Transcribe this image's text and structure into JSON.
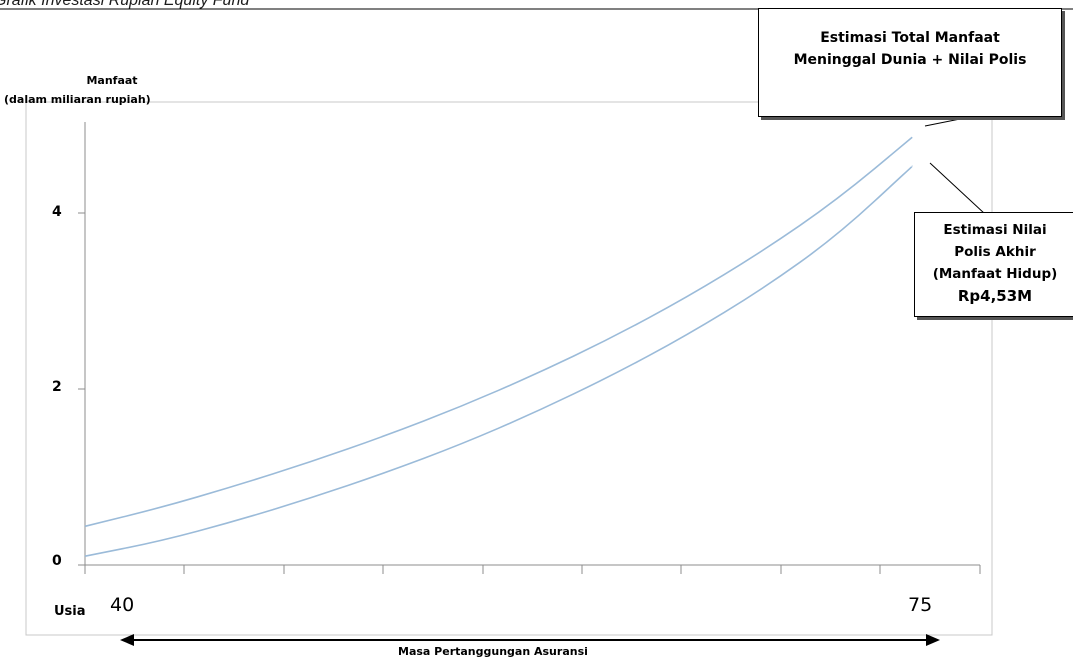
{
  "header": {
    "text": "Grafik Investasi Rupiah Equity Fund"
  },
  "chart_data": {
    "type": "line",
    "ylabel_line1": "Manfaat",
    "ylabel_line2": "(dalam miliaran rupiah)",
    "xlabel": "Usia",
    "x_tick_labels": [
      "40",
      "75"
    ],
    "y_tick_labels": [
      "0",
      "2",
      "4"
    ],
    "xlim": [
      40,
      75
    ],
    "ylim": [
      0,
      5
    ],
    "grid": false,
    "series": [
      {
        "color": "#9bbbd9",
        "points": [
          [
            40,
            0.44
          ],
          [
            43.5,
            0.65
          ],
          [
            47,
            0.9
          ],
          [
            50.5,
            1.17
          ],
          [
            54,
            1.47
          ],
          [
            57.5,
            1.8
          ],
          [
            61,
            2.17
          ],
          [
            64.5,
            2.58
          ],
          [
            68,
            3.04
          ],
          [
            71.5,
            3.56
          ],
          [
            75,
            4.15
          ],
          [
            78.5,
            4.86
          ]
        ]
      },
      {
        "color": "#9bbbd9",
        "points": [
          [
            40,
            0.1
          ],
          [
            43.5,
            0.27
          ],
          [
            47,
            0.5
          ],
          [
            50.5,
            0.76
          ],
          [
            54,
            1.05
          ],
          [
            57.5,
            1.37
          ],
          [
            61,
            1.74
          ],
          [
            64.5,
            2.15
          ],
          [
            68,
            2.61
          ],
          [
            71.5,
            3.13
          ],
          [
            75,
            3.74
          ],
          [
            78.5,
            4.53
          ]
        ]
      }
    ],
    "span_annotation": "Masa Pertanggungan Asuransi",
    "callouts": [
      {
        "line1": "Estimasi Total Manfaat",
        "line2": "Meninggal Dunia + Nilai Polis"
      },
      {
        "line1": "Estimasi Nilai",
        "line2": "Polis Akhir",
        "line3": "(Manfaat Hidup)",
        "value": "Rp4,53M"
      }
    ]
  }
}
